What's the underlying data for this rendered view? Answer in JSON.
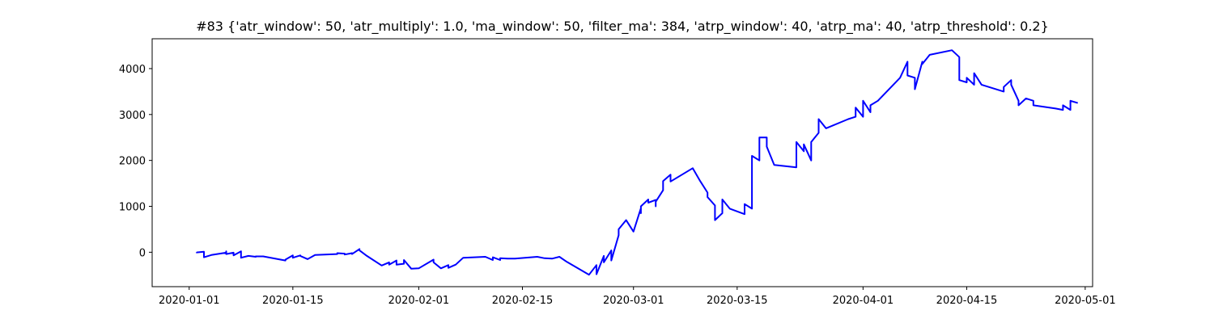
{
  "chart_data": {
    "type": "line",
    "title": "#83 {'atr_window': 50, 'atr_multiply': 1.0, 'ma_window': 50, 'filter_ma': 384, 'atrp_window': 40, 'atrp_ma': 40, 'atrp_threshold': 0.2}",
    "xlabel": "",
    "ylabel": "",
    "x_type": "date",
    "xlim": [
      "2019-12-27",
      "2020-05-02"
    ],
    "ylim": [
      -750,
      4650
    ],
    "x_ticks": [
      "2020-01-01",
      "2020-01-15",
      "2020-02-01",
      "2020-02-15",
      "2020-03-01",
      "2020-03-15",
      "2020-04-01",
      "2020-04-15",
      "2020-05-01"
    ],
    "y_ticks": [
      0,
      1000,
      2000,
      3000,
      4000
    ],
    "grid": false,
    "series": [
      {
        "color": "#0000ff",
        "x": [
          "2020-01-02",
          "2020-01-02",
          "2020-01-03",
          "2020-01-03",
          "2020-01-03",
          "2020-01-03",
          "2020-01-04",
          "2020-01-06",
          "2020-01-06",
          "2020-01-06",
          "2020-01-07",
          "2020-01-07",
          "2020-01-08",
          "2020-01-08",
          "2020-01-09",
          "2020-01-10",
          "2020-01-10",
          "2020-01-11",
          "2020-01-14",
          "2020-01-14",
          "2020-01-15",
          "2020-01-15",
          "2020-01-16",
          "2020-01-16",
          "2020-01-17",
          "2020-01-18",
          "2020-01-21",
          "2020-01-21",
          "2020-01-22",
          "2020-01-22",
          "2020-01-23",
          "2020-01-23",
          "2020-01-24",
          "2020-01-24",
          "2020-01-25",
          "2020-01-27",
          "2020-01-28",
          "2020-01-28",
          "2020-01-29",
          "2020-01-29",
          "2020-01-30",
          "2020-01-30",
          "2020-01-31",
          "2020-02-01",
          "2020-02-03",
          "2020-02-03",
          "2020-02-04",
          "2020-02-05",
          "2020-02-05",
          "2020-02-06",
          "2020-02-07",
          "2020-02-10",
          "2020-02-11",
          "2020-02-11",
          "2020-02-12",
          "2020-02-12",
          "2020-02-13",
          "2020-02-14",
          "2020-02-17",
          "2020-02-18",
          "2020-02-19",
          "2020-02-20",
          "2020-02-21",
          "2020-02-24",
          "2020-02-25",
          "2020-02-25",
          "2020-02-26",
          "2020-02-26",
          "2020-02-27",
          "2020-02-27",
          "2020-02-28",
          "2020-02-28",
          "2020-02-29",
          "2020-03-01",
          "2020-03-02",
          "2020-03-02",
          "2020-03-02",
          "2020-03-03",
          "2020-03-03",
          "2020-03-04",
          "2020-03-04",
          "2020-03-04",
          "2020-03-05",
          "2020-03-05",
          "2020-03-06",
          "2020-03-06",
          "2020-03-09",
          "2020-03-10",
          "2020-03-10",
          "2020-03-11",
          "2020-03-11",
          "2020-03-12",
          "2020-03-12",
          "2020-03-13",
          "2020-03-13",
          "2020-03-14",
          "2020-03-16",
          "2020-03-16",
          "2020-03-17",
          "2020-03-17",
          "2020-03-17",
          "2020-03-18",
          "2020-03-18",
          "2020-03-19",
          "2020-03-19",
          "2020-03-20",
          "2020-03-23",
          "2020-03-23",
          "2020-03-24",
          "2020-03-24",
          "2020-03-25",
          "2020-03-25",
          "2020-03-26",
          "2020-03-26",
          "2020-03-27",
          "2020-03-30",
          "2020-03-30",
          "2020-03-31",
          "2020-03-31",
          "2020-04-01",
          "2020-04-01",
          "2020-04-02",
          "2020-04-02",
          "2020-04-03",
          "2020-04-06",
          "2020-04-07",
          "2020-04-07",
          "2020-04-08",
          "2020-04-08",
          "2020-04-09",
          "2020-04-09",
          "2020-04-10",
          "2020-04-13",
          "2020-04-14",
          "2020-04-14",
          "2020-04-15",
          "2020-04-15",
          "2020-04-16",
          "2020-04-16",
          "2020-04-17",
          "2020-04-17",
          "2020-04-20",
          "2020-04-20",
          "2020-04-21",
          "2020-04-21",
          "2020-04-22",
          "2020-04-22",
          "2020-04-23",
          "2020-04-24",
          "2020-04-24",
          "2020-04-27",
          "2020-04-28",
          "2020-04-28",
          "2020-04-29",
          "2020-04-29",
          "2020-04-30"
        ],
        "values": [
          0,
          -5,
          10,
          -90,
          -10,
          -110,
          -60,
          -10,
          20,
          -40,
          -10,
          -70,
          20,
          -120,
          -80,
          -100,
          -90,
          -90,
          -180,
          -160,
          -70,
          -120,
          -70,
          -80,
          -150,
          -60,
          -40,
          -20,
          -30,
          -50,
          -20,
          -40,
          70,
          40,
          -80,
          -290,
          -220,
          -270,
          -180,
          -270,
          -250,
          -170,
          -360,
          -350,
          -160,
          -220,
          -350,
          -280,
          -340,
          -270,
          -120,
          -100,
          -170,
          -110,
          -170,
          -130,
          -140,
          -140,
          -100,
          -130,
          -140,
          -100,
          -210,
          -490,
          -280,
          -480,
          -80,
          -220,
          40,
          -180,
          370,
          500,
          700,
          450,
          960,
          850,
          1000,
          1150,
          1080,
          1140,
          1000,
          1100,
          1350,
          1550,
          1690,
          1540,
          1830,
          1550,
          1550,
          1300,
          1200,
          1020,
          700,
          850,
          1150,
          950,
          830,
          1050,
          950,
          1500,
          2100,
          2000,
          2500,
          2500,
          2300,
          1900,
          1850,
          2400,
          2200,
          2350,
          2000,
          2400,
          2600,
          2900,
          2700,
          2900,
          2900,
          2950,
          3150,
          2950,
          3300,
          3050,
          3200,
          3300,
          3800,
          4150,
          3850,
          3800,
          3550,
          4150,
          4100,
          4300,
          4400,
          4250,
          3750,
          3700,
          3800,
          3650,
          3900,
          3650,
          3650,
          3500,
          3600,
          3750,
          3650,
          3300,
          3200,
          3350,
          3300,
          3200,
          3130,
          3100,
          3200,
          3100,
          3300,
          3250
        ]
      }
    ]
  }
}
